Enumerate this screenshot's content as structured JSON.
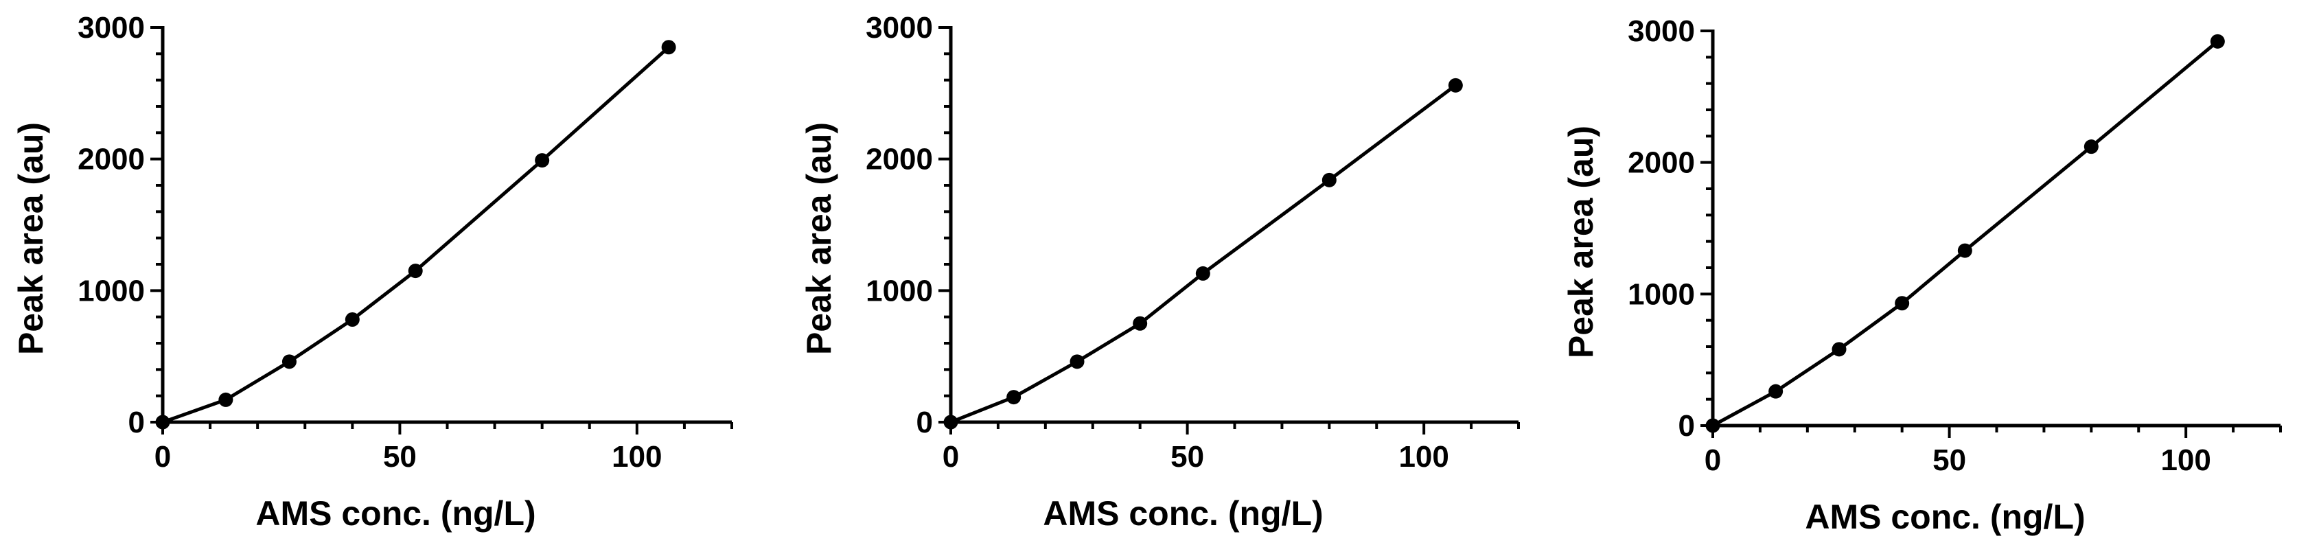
{
  "chart_data": [
    {
      "type": "line",
      "xlabel": "AMS conc. (ng/L)",
      "ylabel": "Peak area (au)",
      "xlim": [
        0,
        120
      ],
      "ylim": [
        0,
        3000
      ],
      "xticks": [
        0,
        50,
        100
      ],
      "yticks": [
        0,
        1000,
        2000,
        3000
      ],
      "xtick_labels": [
        "0",
        "50",
        "100"
      ],
      "ytick_labels": [
        "0",
        "1000",
        "2000",
        "3000"
      ],
      "grid": false,
      "series": [
        {
          "x": [
            0,
            13.3,
            26.7,
            40,
            53.3,
            80,
            106.7
          ],
          "y": [
            0,
            170,
            460,
            780,
            1150,
            1990,
            2850
          ],
          "color": "#000000",
          "marker": "circle"
        }
      ]
    },
    {
      "type": "line",
      "xlabel": "AMS conc. (ng/L)",
      "ylabel": "Peak area (au)",
      "xlim": [
        0,
        120
      ],
      "ylim": [
        0,
        3000
      ],
      "xticks": [
        0,
        50,
        100
      ],
      "yticks": [
        0,
        1000,
        2000,
        3000
      ],
      "xtick_labels": [
        "0",
        "50",
        "100"
      ],
      "ytick_labels": [
        "0",
        "1000",
        "2000",
        "3000"
      ],
      "grid": false,
      "series": [
        {
          "x": [
            0,
            13.3,
            26.7,
            40,
            53.3,
            80,
            106.7
          ],
          "y": [
            0,
            190,
            460,
            750,
            1130,
            1840,
            2560
          ],
          "color": "#000000",
          "marker": "circle"
        }
      ]
    },
    {
      "type": "line",
      "xlabel": "AMS conc. (ng/L)",
      "ylabel": "Peak area (au)",
      "xlim": [
        0,
        120
      ],
      "ylim": [
        0,
        3000
      ],
      "xticks": [
        0,
        50,
        100
      ],
      "yticks": [
        0,
        1000,
        2000,
        3000
      ],
      "xtick_labels": [
        "0",
        "50",
        "100"
      ],
      "ytick_labels": [
        "0",
        "1000",
        "2000",
        "3000"
      ],
      "grid": false,
      "series": [
        {
          "x": [
            0,
            13.3,
            26.7,
            40,
            53.3,
            80,
            106.7
          ],
          "y": [
            0,
            260,
            580,
            930,
            1330,
            2120,
            2920
          ],
          "color": "#000000",
          "marker": "circle"
        }
      ]
    }
  ]
}
